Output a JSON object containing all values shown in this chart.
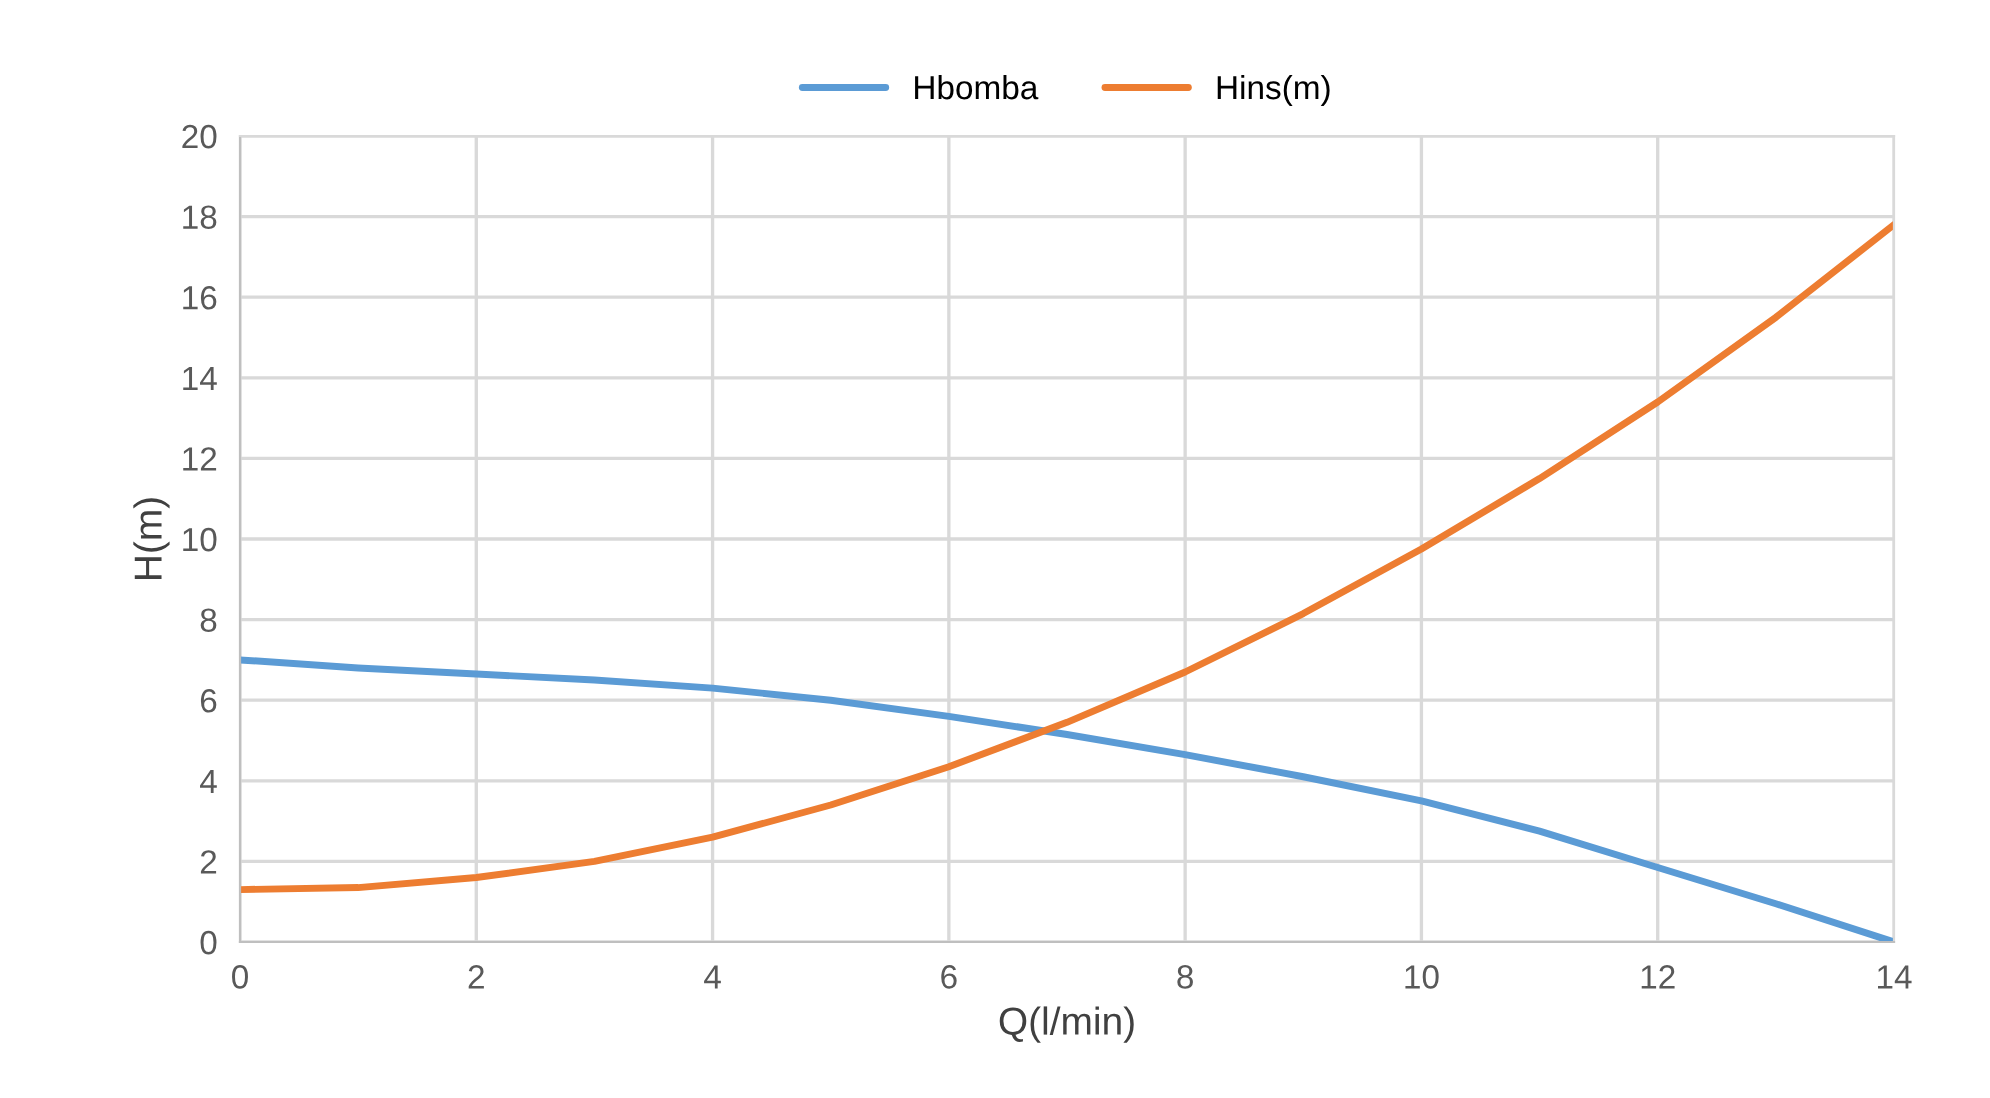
{
  "chart_data": {
    "type": "line",
    "xlabel": "Q(l/min)",
    "ylabel": "H(m)",
    "x": [
      0,
      1,
      2,
      3,
      4,
      5,
      6,
      7,
      8,
      9,
      10,
      11,
      12,
      13,
      14
    ],
    "series": [
      {
        "name": "Hbomba",
        "color": "#5b9bd5",
        "values": [
          7.0,
          6.8,
          6.65,
          6.5,
          6.3,
          6.0,
          5.6,
          5.15,
          4.65,
          4.1,
          3.5,
          2.75,
          1.85,
          0.95,
          0.0
        ]
      },
      {
        "name": "Hins(m)",
        "color": "#ed7d31",
        "values": [
          1.3,
          1.35,
          1.6,
          2.0,
          2.6,
          3.4,
          4.35,
          5.45,
          6.7,
          8.15,
          9.75,
          11.5,
          13.4,
          15.5,
          17.8
        ]
      }
    ],
    "xlim": [
      0,
      14
    ],
    "xticks": [
      0,
      2,
      4,
      6,
      8,
      10,
      12,
      14
    ],
    "ylim": [
      0,
      20
    ],
    "yticks": [
      0,
      2,
      4,
      6,
      8,
      10,
      12,
      14,
      16,
      18,
      20
    ],
    "grid": true,
    "legend": "top",
    "marker": "none",
    "line_style": "solid"
  }
}
